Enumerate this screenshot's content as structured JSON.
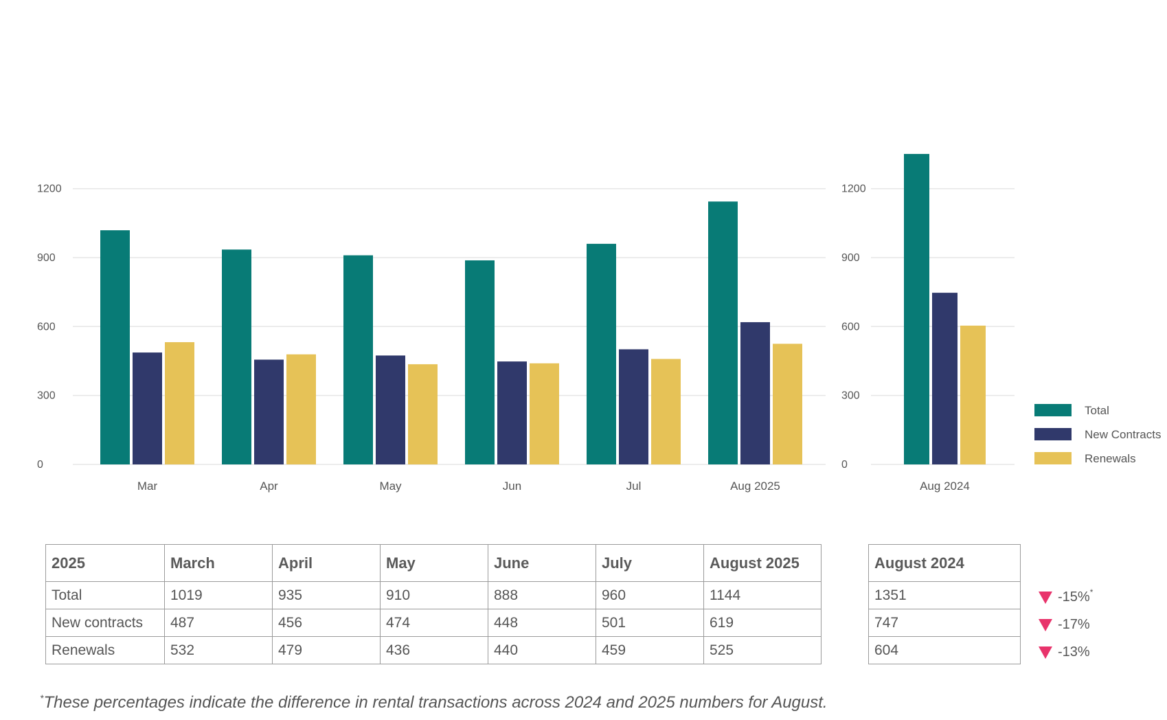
{
  "chart_data": [
    {
      "type": "bar",
      "categories": [
        "Mar",
        "Apr",
        "May",
        "Jun",
        "Jul",
        "Aug 2025"
      ],
      "series": [
        {
          "name": "Total",
          "values": [
            1019,
            935,
            910,
            888,
            960,
            1144
          ]
        },
        {
          "name": "New Contracts",
          "values": [
            487,
            456,
            474,
            448,
            501,
            619
          ]
        },
        {
          "name": "Renewals",
          "values": [
            532,
            479,
            436,
            440,
            459,
            525
          ]
        }
      ],
      "yticks": [
        0,
        300,
        600,
        900,
        1200
      ],
      "ylim": [
        0,
        1400
      ],
      "grid": true
    },
    {
      "type": "bar",
      "categories": [
        "Aug 2024"
      ],
      "series": [
        {
          "name": "Total",
          "values": [
            1351
          ]
        },
        {
          "name": "New Contracts",
          "values": [
            747
          ]
        },
        {
          "name": "Renewals",
          "values": [
            604
          ]
        }
      ],
      "yticks": [
        0,
        300,
        600,
        900,
        1200
      ],
      "ylim": [
        0,
        1400
      ],
      "grid": true,
      "legend": "right"
    }
  ],
  "colors": {
    "total": "#087b76",
    "new_contracts": "#30396b",
    "renewals": "#e6c257",
    "down_arrow": "#e8336b",
    "grid": "#e6e6e6"
  },
  "legend": [
    "Total",
    "New Contracts",
    "Renewals"
  ],
  "table": {
    "header": [
      "2025",
      "March",
      "April",
      "May",
      "June",
      "July",
      "August 2025"
    ],
    "rows": [
      [
        "Total",
        "1019",
        "935",
        "910",
        "888",
        "960",
        "1144"
      ],
      [
        "New contracts",
        "487",
        "456",
        "474",
        "448",
        "501",
        "619"
      ],
      [
        "Renewals",
        "532",
        "479",
        "436",
        "440",
        "459",
        "525"
      ]
    ]
  },
  "prev_table": {
    "header": "August 2024",
    "rows": [
      "1351",
      "747",
      "604"
    ]
  },
  "changes": [
    "-15%",
    "-17%",
    "-13%"
  ],
  "change_marker": "*",
  "footnote": {
    "marker": "*",
    "text": "These percentages indicate the difference in rental transactions across 2024 and 2025 numbers for August."
  }
}
